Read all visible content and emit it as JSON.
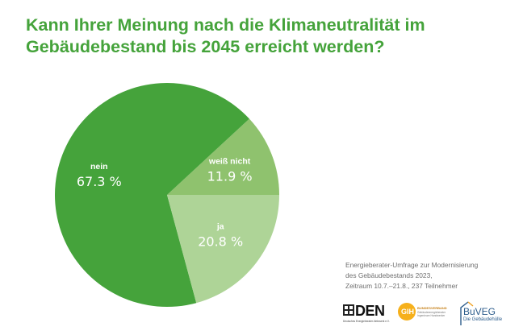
{
  "title": {
    "line1": "Kann Ihrer Meinung nach die Klimaneutralität im",
    "line2": "Gebäudebestand bis 2045 erreicht werden?"
  },
  "chart_data": {
    "type": "pie",
    "title": "Kann Ihrer Meinung nach die Klimaneutralität im Gebäudebestand bis 2045 erreicht werden?",
    "start_angle_deg": 0,
    "direction": "counterclockwise",
    "slices": [
      {
        "label": "weiß nicht",
        "value": 11.9,
        "display": "11.9 %",
        "color": "#8fc26e"
      },
      {
        "label": "nein",
        "value": 67.3,
        "display": "67.3 %",
        "color": "#45a33b"
      },
      {
        "label": "ja",
        "value": 20.8,
        "display": "20.8 %",
        "color": "#aed497"
      }
    ]
  },
  "source": {
    "line1": "Energieberater-Umfrage zur Modernisierung",
    "line2": "des Gebäudebestands 2023,",
    "line3": "Zeitraum 10.7.–21.8., 237 Teilnehmer"
  },
  "logos": {
    "den": {
      "text": "DEN",
      "sub": "Deutsches Energieberater-Netzwerk e.V."
    },
    "gih": {
      "text": "GIH",
      "org": "BUNDESVERBAND",
      "sub": "Gebäudeenergieberater Ingenieure Handwerker"
    },
    "buveg": {
      "text": "BuVEG",
      "sub": "Die Gebäudehülle"
    }
  },
  "colors": {
    "title": "#45a33b",
    "source_text": "#6f6f6f"
  }
}
